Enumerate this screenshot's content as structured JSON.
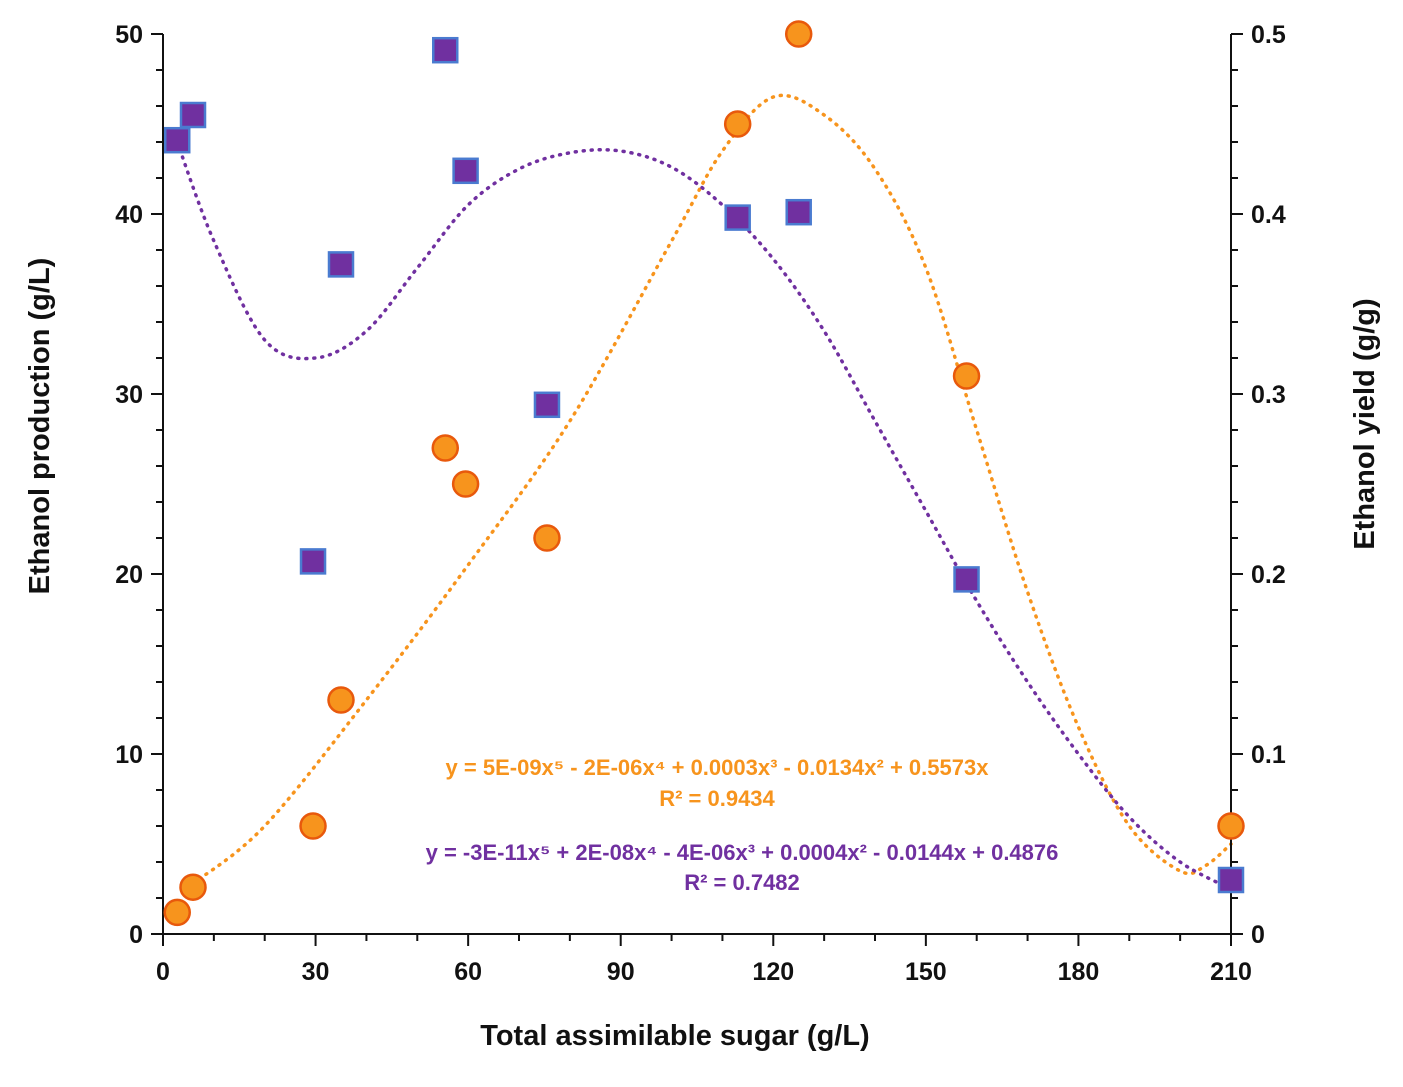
{
  "chart_data": {
    "type": "scatter",
    "title": "",
    "xlabel": "Total assimilable sugar (g/L)",
    "ylabel": "Ethanol production (g/L)",
    "y2label": "Ethanol yield (g/g)",
    "xlim": [
      0,
      210
    ],
    "ylim": [
      0,
      50
    ],
    "y2lim": [
      0,
      0.5
    ],
    "x_ticks": [
      "0",
      "30",
      "60",
      "90",
      "120",
      "150",
      "180",
      "210"
    ],
    "y_ticks": [
      "0",
      "10",
      "20",
      "30",
      "40",
      "50"
    ],
    "y2_ticks": [
      "0",
      "0.1",
      "0.2",
      "0.3",
      "0.4",
      "0.5"
    ],
    "grid": false,
    "series": [
      {
        "name": "Ethanol production",
        "axis": "left",
        "marker": "circle",
        "color": "#F7941D",
        "edge_color": "#E8590C",
        "x": [
          2.8,
          5.9,
          29.5,
          35,
          55.5,
          59.5,
          75.5,
          113,
          125,
          158,
          210
        ],
        "y": [
          1.2,
          2.6,
          6.0,
          13.0,
          27.0,
          25.0,
          22.0,
          45.0,
          50.0,
          31.0,
          6.0
        ]
      },
      {
        "name": "Ethanol yield",
        "axis": "right",
        "marker": "square",
        "color": "#7030A0",
        "edge_color": "#4A7BD0",
        "x": [
          2.8,
          5.9,
          29.5,
          35,
          55.5,
          59.5,
          75.5,
          113,
          125,
          158,
          210
        ],
        "y": [
          0.441,
          0.455,
          0.207,
          0.372,
          0.491,
          0.424,
          0.294,
          0.398,
          0.401,
          0.197,
          0.03
        ]
      }
    ],
    "trendlines": [
      {
        "series": "Ethanol production",
        "axis": "left",
        "color": "#F7941D",
        "style": "dotted",
        "x_range": [
          5.9,
          210
        ],
        "x": [
          5.9,
          20,
          40,
          60,
          80,
          100,
          110,
          120,
          130,
          140,
          150,
          160,
          170,
          180,
          190,
          200,
          205,
          210
        ],
        "y": [
          2.8,
          6.0,
          13.0,
          20.5,
          28.5,
          38.5,
          43.5,
          46.5,
          45.5,
          42.5,
          37.0,
          28.0,
          19.0,
          11.5,
          6.0,
          3.5,
          3.8,
          5.0
        ],
        "equation": "y = 5E-09x⁵ - 2E-06x⁴ + 0.0003x³ - 0.0134x² + 0.5573x",
        "r2": "R² = 0.9434"
      },
      {
        "series": "Ethanol yield",
        "axis": "right",
        "color": "#7030A0",
        "style": "dotted",
        "x_range": [
          2.8,
          210
        ],
        "x": [
          2.8,
          10,
          20,
          30,
          40,
          50,
          60,
          70,
          80,
          90,
          100,
          110,
          120,
          130,
          140,
          150,
          160,
          170,
          180,
          190,
          200,
          210
        ],
        "y": [
          0.44,
          0.385,
          0.33,
          0.32,
          0.335,
          0.37,
          0.405,
          0.425,
          0.434,
          0.435,
          0.426,
          0.405,
          0.375,
          0.335,
          0.285,
          0.235,
          0.185,
          0.14,
          0.1,
          0.065,
          0.04,
          0.025
        ],
        "equation": "y = -3E-11x⁵ + 2E-08x⁴ - 4E-06x³ + 0.0004x² - 0.0144x + 0.4876",
        "r2": "R² = 0.7482"
      }
    ]
  }
}
